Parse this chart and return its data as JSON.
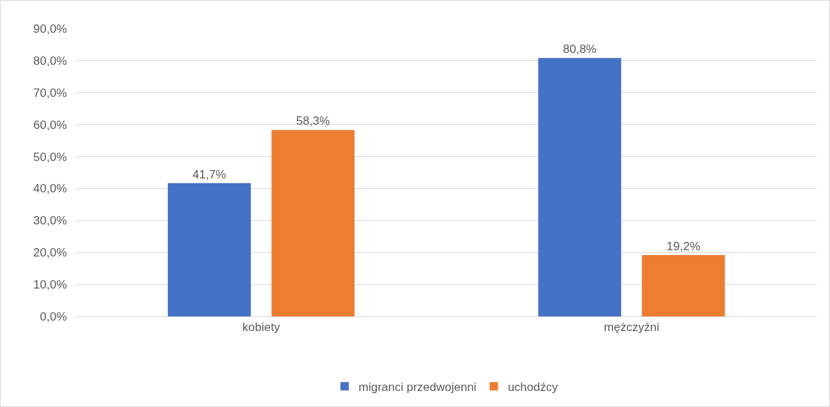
{
  "chart_data": {
    "type": "bar",
    "categories": [
      "kobiety",
      "mężczyźni"
    ],
    "series": [
      {
        "name": "migranci przedwojenni",
        "color": "#4472c4",
        "values": [
          41.7,
          80.8
        ],
        "value_labels": [
          "41,7%",
          "80,8%"
        ]
      },
      {
        "name": "uchodźcy",
        "color": "#ed7d31",
        "values": [
          58.3,
          19.2
        ],
        "value_labels": [
          "58,3%",
          "19,2%"
        ]
      }
    ],
    "ylim": [
      0,
      90
    ],
    "yticks": [
      {
        "value": 0,
        "label": "0,0%"
      },
      {
        "value": 10,
        "label": "10,0%"
      },
      {
        "value": 20,
        "label": "20,0%"
      },
      {
        "value": 30,
        "label": "30,0%"
      },
      {
        "value": 40,
        "label": "40,0%"
      },
      {
        "value": 50,
        "label": "50,0%"
      },
      {
        "value": 60,
        "label": "60,0%"
      },
      {
        "value": 70,
        "label": "70,0%"
      },
      {
        "value": 80,
        "label": "80,0%"
      },
      {
        "value": 90,
        "label": "90,0%"
      }
    ],
    "grid": "y",
    "legend": "bottom"
  }
}
